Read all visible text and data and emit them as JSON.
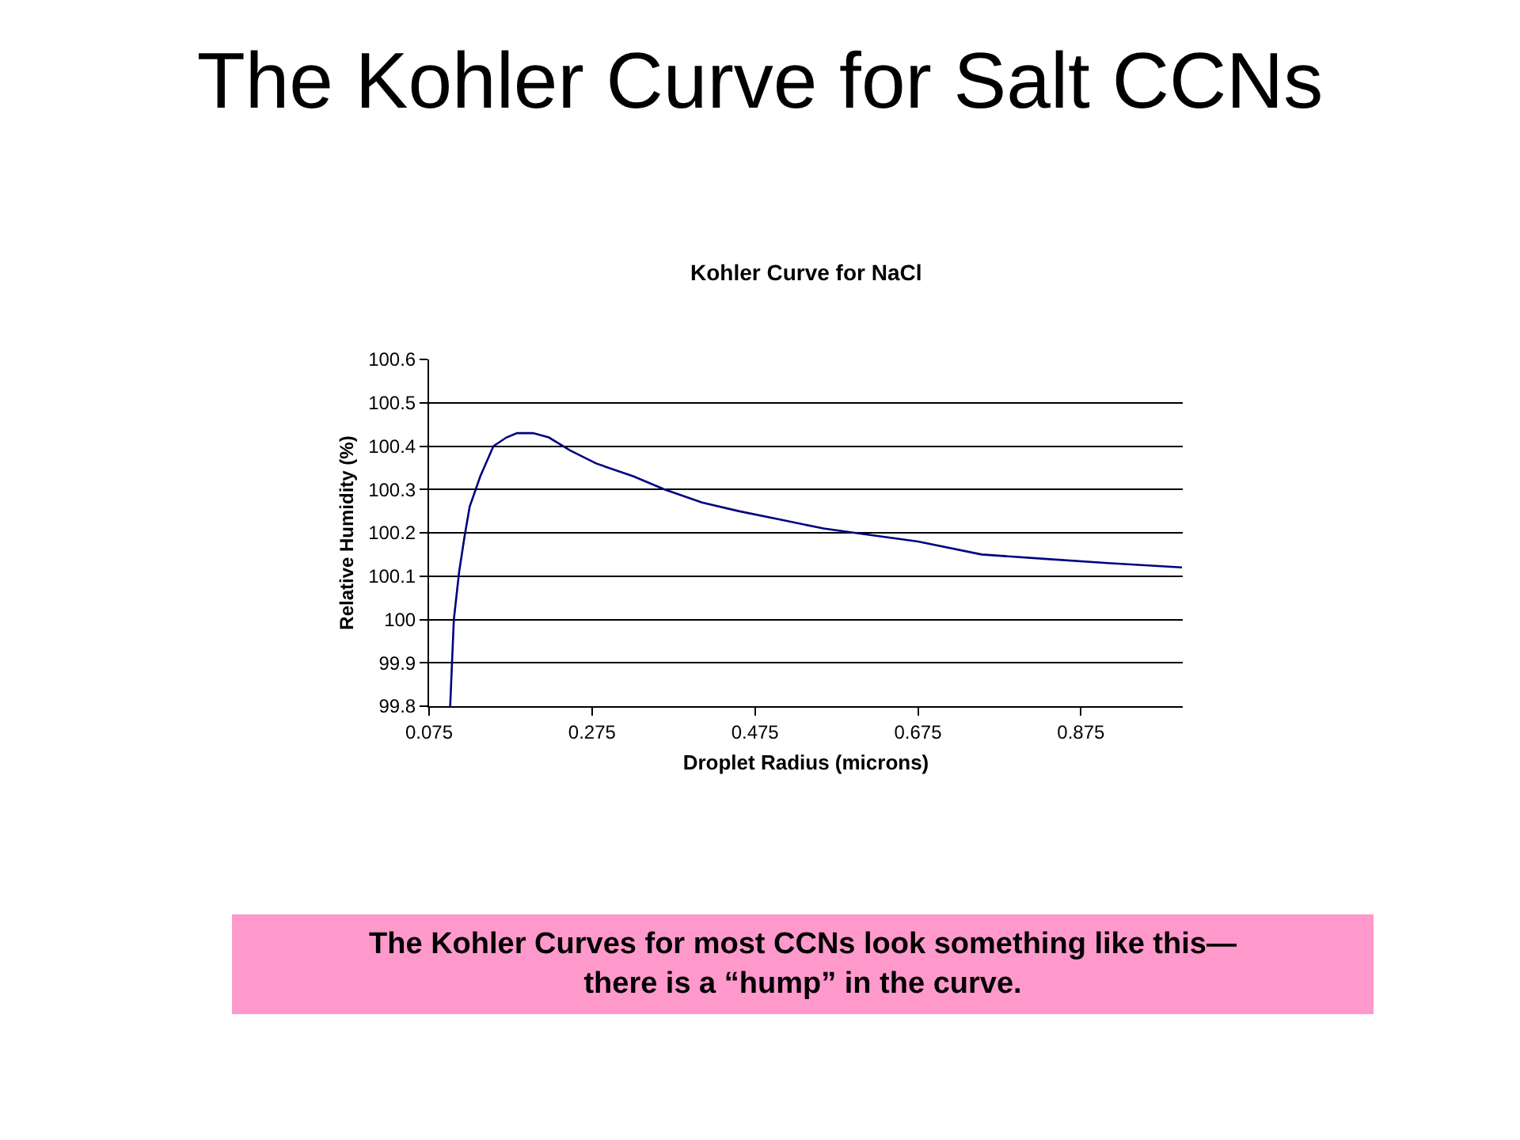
{
  "chart_data": {
    "type": "line",
    "title": "The Kohler Curve for Salt CCNs",
    "subtitle": "Kohler Curve for NaCl",
    "xlabel": "Droplet Radius (microns)",
    "ylabel": "Relative Humidity (%)",
    "series": [
      {
        "color": "#000080",
        "x": [
          0.1009,
          0.1054,
          0.1119,
          0.1184,
          0.1248,
          0.1378,
          0.154,
          0.17,
          0.183,
          0.2025,
          0.222,
          0.248,
          0.28,
          0.326,
          0.364,
          0.41,
          0.455,
          0.507,
          0.559,
          0.597,
          0.675,
          0.753,
          0.83,
          0.908,
          0.999
        ],
        "values": [
          99.8,
          100.0,
          100.11,
          100.19,
          100.26,
          100.33,
          100.4,
          100.42,
          100.43,
          100.43,
          100.42,
          100.39,
          100.36,
          100.33,
          100.3,
          100.27,
          100.25,
          100.23,
          100.21,
          100.2,
          100.18,
          100.15,
          100.14,
          100.13,
          100.12
        ]
      }
    ],
    "xlim": [
      0.075,
      1.0
    ],
    "xticks": [
      0.075,
      0.275,
      0.475,
      0.675,
      0.875
    ],
    "ylim": [
      99.8,
      100.6
    ],
    "yticks": [
      99.8,
      99.9,
      100,
      100.1,
      100.2,
      100.3,
      100.4,
      100.5,
      100.6
    ],
    "grid": "y",
    "marker": "none",
    "line_style": "solid",
    "annotations": [
      "The Kohler Curves for most CCNs look something like this—\nthere is a “hump” in the curve."
    ]
  }
}
